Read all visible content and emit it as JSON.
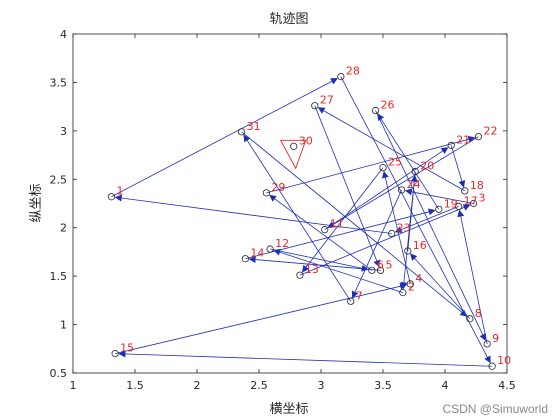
{
  "chart_data": {
    "type": "scatter",
    "title": "轨迹图",
    "xlabel": "横坐标",
    "ylabel": "纵坐标",
    "xlim": [
      1,
      4.5
    ],
    "ylim": [
      0.5,
      4
    ],
    "xticks": [
      "1",
      "1.5",
      "2",
      "2.5",
      "3",
      "3.5",
      "4",
      "4.5"
    ],
    "yticks": [
      "0.5",
      "1",
      "1.5",
      "2",
      "2.5",
      "3",
      "3.5",
      "4"
    ],
    "grid": false,
    "colors": {
      "path": "#1f2fb5",
      "label": "#e8262a",
      "axis": "#262626"
    },
    "points": [
      {
        "id": "1",
        "x": 1.31,
        "y": 2.32
      },
      {
        "id": "2",
        "x": 3.66,
        "y": 1.33
      },
      {
        "id": "3",
        "x": 4.23,
        "y": 2.25
      },
      {
        "id": "4",
        "x": 3.72,
        "y": 1.42
      },
      {
        "id": "5",
        "x": 3.48,
        "y": 1.56
      },
      {
        "id": "6",
        "x": 3.41,
        "y": 1.56
      },
      {
        "id": "7",
        "x": 3.24,
        "y": 1.24
      },
      {
        "id": "8",
        "x": 4.2,
        "y": 1.06
      },
      {
        "id": "9",
        "x": 4.34,
        "y": 0.8
      },
      {
        "id": "10",
        "x": 4.38,
        "y": 0.57
      },
      {
        "id": "11",
        "x": 3.03,
        "y": 1.98
      },
      {
        "id": "12",
        "x": 2.59,
        "y": 1.78
      },
      {
        "id": "13",
        "x": 2.83,
        "y": 1.51
      },
      {
        "id": "14",
        "x": 2.39,
        "y": 1.68
      },
      {
        "id": "15",
        "x": 1.34,
        "y": 0.7
      },
      {
        "id": "16",
        "x": 3.7,
        "y": 1.76
      },
      {
        "id": "17",
        "x": 4.11,
        "y": 2.22
      },
      {
        "id": "18",
        "x": 4.16,
        "y": 2.38
      },
      {
        "id": "19",
        "x": 3.95,
        "y": 2.19
      },
      {
        "id": "20",
        "x": 3.76,
        "y": 2.58
      },
      {
        "id": "21",
        "x": 4.05,
        "y": 2.85
      },
      {
        "id": "22",
        "x": 4.27,
        "y": 2.94
      },
      {
        "id": "23",
        "x": 3.57,
        "y": 1.94
      },
      {
        "id": "24",
        "x": 3.65,
        "y": 2.39
      },
      {
        "id": "25",
        "x": 3.5,
        "y": 2.62
      },
      {
        "id": "26",
        "x": 3.44,
        "y": 3.21
      },
      {
        "id": "27",
        "x": 2.95,
        "y": 3.26
      },
      {
        "id": "28",
        "x": 3.16,
        "y": 3.56
      },
      {
        "id": "29",
        "x": 2.56,
        "y": 2.36
      },
      {
        "id": "30",
        "x": 2.78,
        "y": 2.84
      },
      {
        "id": "31",
        "x": 2.36,
        "y": 2.99
      }
    ],
    "path": [
      "1",
      "28",
      "10",
      "15",
      "4",
      "25",
      "13",
      "3",
      "24",
      "7",
      "31",
      "8",
      "16",
      "20",
      "2",
      "12",
      "6",
      "29",
      "22",
      "11",
      "21",
      "18",
      "27",
      "5",
      "14",
      "19",
      "26",
      "9",
      "17",
      "23",
      "1"
    ],
    "closed_triangle": [
      "30",
      "30",
      "30"
    ]
  },
  "watermark": "CSDN @Simuworld"
}
